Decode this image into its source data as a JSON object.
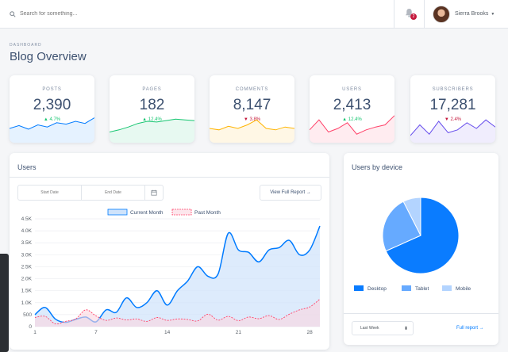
{
  "search": {
    "placeholder": "Search for something..."
  },
  "notifications": {
    "count": "2"
  },
  "user": {
    "name": "Sierra Brooks"
  },
  "page": {
    "subtitle": "DASHBOARD",
    "title": "Blog Overview"
  },
  "stats": [
    {
      "label": "POSTS",
      "value": "2,390",
      "change": "4.7%",
      "dir": "up",
      "color": "#007bff",
      "spark": [
        20,
        24,
        19,
        25,
        22,
        28,
        26,
        30,
        27,
        35
      ]
    },
    {
      "label": "PAGES",
      "value": "182",
      "change": "12.4%",
      "dir": "up",
      "color": "#17c671",
      "spark": [
        15,
        18,
        22,
        27,
        30,
        29,
        31,
        33,
        32,
        31
      ]
    },
    {
      "label": "COMMENTS",
      "value": "8,147",
      "change": "3.8%",
      "dir": "down",
      "color": "#ffb400",
      "spark": [
        20,
        18,
        23,
        20,
        25,
        32,
        20,
        18,
        22,
        20
      ]
    },
    {
      "label": "USERS",
      "value": "2,413",
      "change": "12.4%",
      "dir": "up",
      "color": "#ff4169",
      "spark": [
        18,
        32,
        15,
        20,
        28,
        12,
        18,
        22,
        25,
        38
      ]
    },
    {
      "label": "SUBSCRIBERS",
      "value": "17,281",
      "change": "2.4%",
      "dir": "down",
      "color": "#674eec",
      "spark": [
        10,
        25,
        12,
        30,
        14,
        18,
        28,
        20,
        32,
        22
      ]
    }
  ],
  "users_card": {
    "title": "Users",
    "start_placeholder": "Start Date",
    "end_placeholder": "End Date",
    "report_button": "View Full Report →"
  },
  "chart_data": {
    "type": "area",
    "legend": [
      "Current Month",
      "Past Month"
    ],
    "x": [
      1,
      2,
      3,
      4,
      5,
      6,
      7,
      8,
      9,
      10,
      11,
      12,
      13,
      14,
      15,
      16,
      17,
      18,
      19,
      20,
      21,
      22,
      23,
      24,
      25,
      26,
      27,
      28,
      29
    ],
    "xticks": [
      "1",
      "7",
      "14",
      "21",
      "28"
    ],
    "yticks": [
      "0",
      "500",
      "1.0K",
      "1.5K",
      "2.0K",
      "2.5K",
      "3.0K",
      "3.5K",
      "4.0K",
      "4.5K"
    ],
    "ylim": [
      0,
      4500
    ],
    "series": [
      {
        "name": "Current Month",
        "values": [
          500,
          800,
          320,
          180,
          300,
          400,
          200,
          700,
          600,
          1200,
          800,
          1000,
          1500,
          900,
          1500,
          1900,
          2500,
          2100,
          2200,
          3900,
          3200,
          3100,
          2700,
          3200,
          3300,
          3600,
          3000,
          3200,
          4200
        ]
      },
      {
        "name": "Past Month",
        "values": [
          380,
          430,
          120,
          220,
          320,
          700,
          450,
          260,
          360,
          280,
          320,
          220,
          380,
          260,
          320,
          300,
          240,
          520,
          270,
          430,
          250,
          400,
          330,
          460,
          300,
          520,
          700,
          820,
          1150
        ]
      }
    ]
  },
  "device_card": {
    "title": "Users by device",
    "footer_select": "Last Week",
    "footer_link": "Full report →"
  },
  "device_chart": {
    "type": "pie",
    "labels": [
      "Desktop",
      "Tablet",
      "Mobile"
    ],
    "values": [
      68.3,
      24.2,
      7.5
    ],
    "colors": [
      "#0a7cff",
      "#66aaff",
      "#b3d4ff"
    ]
  }
}
